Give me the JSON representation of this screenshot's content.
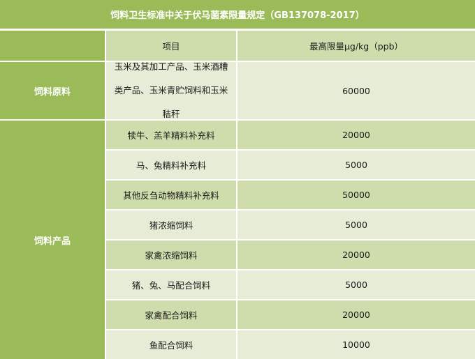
{
  "title": "饲料卫生标准中关于伏马菌素限量规定（GB137078-2017）",
  "header": {
    "category": "",
    "item": "项目",
    "limit": "最高限量μg/kg（ppb）"
  },
  "groups": [
    {
      "category": "饲料原料",
      "rows": [
        {
          "item": "玉米及其加工产品、玉米酒糟类产品、玉米青贮饲料和玉米秸秆",
          "limit": "60000"
        }
      ]
    },
    {
      "category": "饲料产品",
      "rows": [
        {
          "item": "犊牛、羔羊精料补充料",
          "limit": "20000"
        },
        {
          "item": "马、兔精料补充料",
          "limit": "5000"
        },
        {
          "item": "其他反刍动物精料补充料",
          "limit": "50000"
        },
        {
          "item": "猪浓缩饲料",
          "limit": "5000"
        },
        {
          "item": "家禽浓缩饲料",
          "limit": "20000"
        },
        {
          "item": "猪、兔、马配合饲料",
          "limit": "5000"
        },
        {
          "item": "家禽配合饲料",
          "limit": "20000"
        },
        {
          "item": "鱼配合饲料",
          "limit": "10000"
        }
      ]
    }
  ],
  "colors": {
    "accent": "#9bbb59",
    "row_dark": "#cfddac",
    "row_light": "#e6ecd5"
  }
}
